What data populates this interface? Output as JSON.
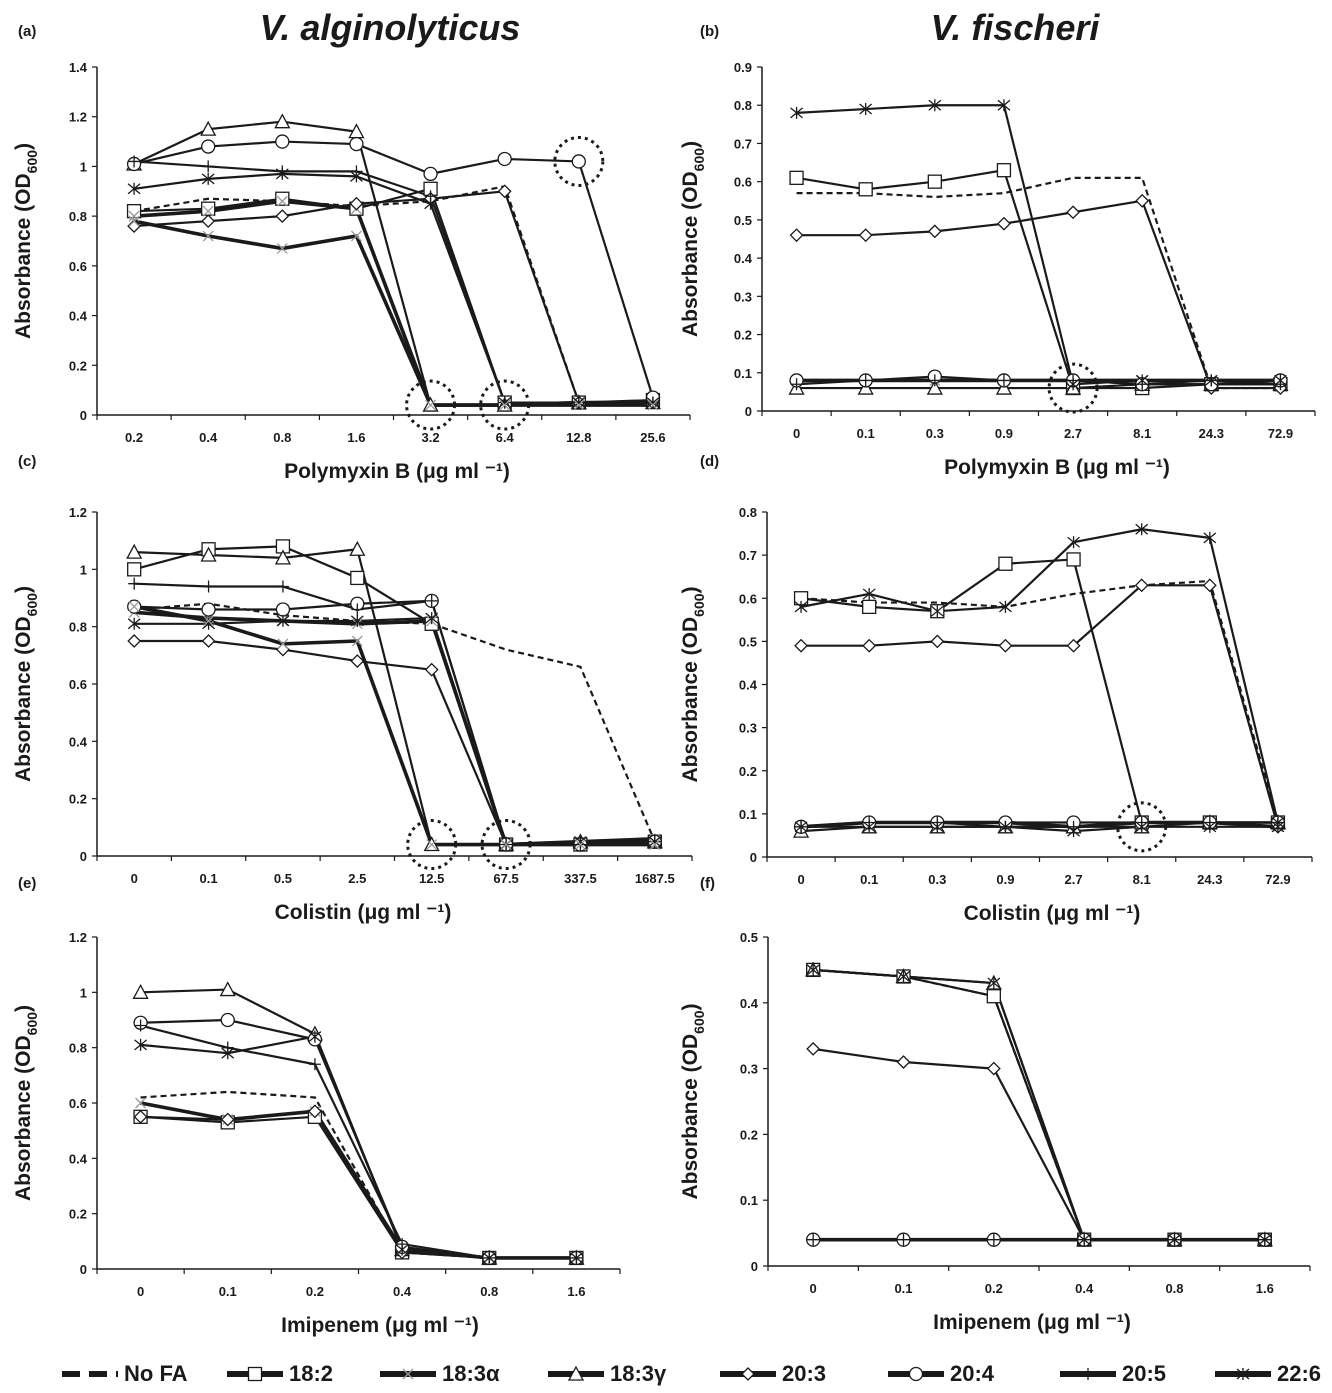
{
  "titles": {
    "left": "V. alginolyticus",
    "right": "V. fischeri"
  },
  "legend": [
    {
      "label": "No FA",
      "series": "nofa"
    },
    {
      "label": "18:2",
      "series": "s182"
    },
    {
      "label": "18:3α",
      "series": "s183a"
    },
    {
      "label": "18:3γ",
      "series": "s183g"
    },
    {
      "label": "20:3",
      "series": "s203"
    },
    {
      "label": "20:4",
      "series": "s204"
    },
    {
      "label": "20:5",
      "series": "s205"
    },
    {
      "label": "22:6",
      "series": "s226"
    }
  ],
  "styles": {
    "nofa": {
      "marker": "none",
      "dash": true,
      "width": 2.2,
      "color": "#1a1a1a"
    },
    "s182": {
      "marker": "square",
      "dash": false,
      "width": 2.2,
      "color": "#1a1a1a"
    },
    "s183a": {
      "marker": "x",
      "dash": false,
      "width": 3.6,
      "color": "#1a1a1a",
      "marker_color": "#999999"
    },
    "s183g": {
      "marker": "triangle",
      "dash": false,
      "width": 2.2,
      "color": "#1a1a1a"
    },
    "s203": {
      "marker": "diamond",
      "dash": false,
      "width": 2.2,
      "color": "#1a1a1a"
    },
    "s204": {
      "marker": "circle",
      "dash": false,
      "width": 2.2,
      "color": "#1a1a1a"
    },
    "s205": {
      "marker": "plus",
      "dash": false,
      "width": 2.2,
      "color": "#1a1a1a"
    },
    "s226": {
      "marker": "asterisk",
      "dash": false,
      "width": 2.2,
      "color": "#1a1a1a"
    }
  },
  "chart_data": [
    {
      "panel": "(a)",
      "type": "line",
      "xlabel": "Polymyxin B (μg ml ⁻¹)",
      "ylabel": "Absorbance (OD600)",
      "categories": [
        "0.2",
        "0.4",
        "0.8",
        "1.6",
        "3.2",
        "6.4",
        "12.8",
        "25.6"
      ],
      "ylim": [
        0,
        1.4
      ],
      "yticks": [
        0,
        0.2,
        0.4,
        0.6,
        0.8,
        1,
        1.2,
        1.4
      ],
      "highlight": [
        "3.2",
        "6.4",
        "12.8"
      ],
      "series": [
        {
          "id": "nofa",
          "values": [
            0.82,
            0.87,
            0.86,
            0.84,
            0.86,
            0.92,
            0.05,
            0.05
          ]
        },
        {
          "id": "s182",
          "values": [
            0.82,
            0.83,
            0.87,
            0.83,
            0.91,
            0.05,
            0.05,
            0.06
          ]
        },
        {
          "id": "s183a",
          "values": [
            0.8,
            0.82,
            0.86,
            0.83,
            0.04,
            0.04,
            0.05,
            0.05
          ]
        },
        {
          "id": "s183g",
          "values": [
            1.01,
            1.15,
            1.18,
            1.14,
            0.04,
            0.04,
            0.05,
            0.05
          ]
        },
        {
          "id": "s203",
          "values": [
            0.76,
            0.78,
            0.8,
            0.85,
            0.87,
            0.9,
            0.05,
            0.05
          ]
        },
        {
          "id": "s204",
          "values": [
            1.01,
            1.08,
            1.1,
            1.09,
            0.97,
            1.03,
            1.02,
            0.07
          ]
        },
        {
          "id": "s205",
          "values": [
            1.02,
            1.0,
            0.98,
            0.98,
            0.88,
            0.05,
            0.05,
            0.05
          ]
        },
        {
          "id": "s226",
          "values": [
            0.91,
            0.95,
            0.97,
            0.96,
            0.85,
            0.05,
            0.05,
            0.05
          ]
        },
        {
          "id": "s183a",
          "values": [
            0.78,
            0.72,
            0.67,
            0.72,
            0.04,
            0.04,
            0.04,
            0.04
          ]
        }
      ]
    },
    {
      "panel": "(b)",
      "type": "line",
      "xlabel": "Polymyxin B (μg ml ⁻¹)",
      "ylabel": "Absorbance (OD600)",
      "categories": [
        "0",
        "0.1",
        "0.3",
        "0.9",
        "2.7",
        "8.1",
        "24.3",
        "72.9"
      ],
      "ylim": [
        0,
        0.9
      ],
      "yticks": [
        0,
        0.1,
        0.2,
        0.3,
        0.4,
        0.5,
        0.6,
        0.7,
        0.8,
        0.9
      ],
      "highlight": [
        "2.7"
      ],
      "series": [
        {
          "id": "nofa",
          "values": [
            0.57,
            0.57,
            0.56,
            0.57,
            0.61,
            0.61,
            0.06,
            0.06
          ]
        },
        {
          "id": "s182",
          "values": [
            0.61,
            0.58,
            0.6,
            0.63,
            0.06,
            0.06,
            0.07,
            0.07
          ]
        },
        {
          "id": "s183a",
          "values": [
            0.08,
            0.08,
            0.08,
            0.08,
            0.08,
            0.08,
            0.08,
            0.08
          ]
        },
        {
          "id": "s183g",
          "values": [
            0.06,
            0.06,
            0.06,
            0.06,
            0.06,
            0.07,
            0.07,
            0.07
          ]
        },
        {
          "id": "s203",
          "values": [
            0.46,
            0.46,
            0.47,
            0.49,
            0.52,
            0.55,
            0.06,
            0.06
          ]
        },
        {
          "id": "s204",
          "values": [
            0.08,
            0.08,
            0.09,
            0.08,
            0.08,
            0.07,
            0.07,
            0.08
          ]
        },
        {
          "id": "s205",
          "values": [
            0.07,
            0.08,
            0.08,
            0.08,
            0.08,
            0.07,
            0.08,
            0.07
          ]
        },
        {
          "id": "s226",
          "values": [
            0.78,
            0.79,
            0.8,
            0.8,
            0.07,
            0.08,
            0.08,
            0.08
          ]
        }
      ]
    },
    {
      "panel": "(c)",
      "type": "line",
      "xlabel": "Colistin (μg ml ⁻¹)",
      "ylabel": "Absorbance (OD600)",
      "categories": [
        "0",
        "0.1",
        "0.5",
        "2.5",
        "12.5",
        "67.5",
        "337.5",
        "1687.5"
      ],
      "ylim": [
        0,
        1.2
      ],
      "yticks": [
        0,
        0.2,
        0.4,
        0.6,
        0.8,
        1,
        1.2
      ],
      "highlight": [
        "12.5",
        "67.5"
      ],
      "series": [
        {
          "id": "nofa",
          "values": [
            0.86,
            0.88,
            0.84,
            0.82,
            0.81,
            0.72,
            0.66,
            0.05
          ]
        },
        {
          "id": "s182",
          "values": [
            1.0,
            1.07,
            1.08,
            0.97,
            0.81,
            0.04,
            0.04,
            0.05
          ]
        },
        {
          "id": "s183a",
          "values": [
            0.85,
            0.83,
            0.82,
            0.81,
            0.82,
            0.04,
            0.05,
            0.06
          ]
        },
        {
          "id": "s183g",
          "values": [
            1.06,
            1.05,
            1.04,
            1.07,
            0.04,
            0.04,
            0.05,
            0.05
          ]
        },
        {
          "id": "s203",
          "values": [
            0.75,
            0.75,
            0.72,
            0.68,
            0.65,
            0.04,
            0.04,
            0.05
          ]
        },
        {
          "id": "s204",
          "values": [
            0.87,
            0.86,
            0.86,
            0.88,
            0.89,
            0.04,
            0.04,
            0.05
          ]
        },
        {
          "id": "s205",
          "values": [
            0.95,
            0.94,
            0.94,
            0.86,
            0.89,
            0.04,
            0.04,
            0.05
          ]
        },
        {
          "id": "s226",
          "values": [
            0.81,
            0.81,
            0.82,
            0.82,
            0.83,
            0.04,
            0.05,
            0.05
          ]
        },
        {
          "id": "s183a",
          "values": [
            0.87,
            0.82,
            0.74,
            0.75,
            0.04,
            0.04,
            0.04,
            0.04
          ]
        }
      ]
    },
    {
      "panel": "(d)",
      "type": "line",
      "xlabel": "Colistin (μg ml ⁻¹)",
      "ylabel": "Absorbance (OD600)",
      "categories": [
        "0",
        "0.1",
        "0.3",
        "0.9",
        "2.7",
        "8.1",
        "24.3",
        "72.9"
      ],
      "ylim": [
        0,
        0.8
      ],
      "yticks": [
        0,
        0.1,
        0.2,
        0.3,
        0.4,
        0.5,
        0.6,
        0.7,
        0.8
      ],
      "highlight": [
        "8.1"
      ],
      "series": [
        {
          "id": "nofa",
          "values": [
            0.6,
            0.59,
            0.59,
            0.58,
            0.61,
            0.63,
            0.64,
            0.08
          ]
        },
        {
          "id": "s182",
          "values": [
            0.6,
            0.58,
            0.57,
            0.68,
            0.69,
            0.08,
            0.08,
            0.08
          ]
        },
        {
          "id": "s183a",
          "values": [
            0.07,
            0.08,
            0.08,
            0.08,
            0.07,
            0.08,
            0.08,
            0.07
          ]
        },
        {
          "id": "s183g",
          "values": [
            0.06,
            0.07,
            0.07,
            0.07,
            0.07,
            0.07,
            0.08,
            0.08
          ]
        },
        {
          "id": "s203",
          "values": [
            0.49,
            0.49,
            0.5,
            0.49,
            0.49,
            0.63,
            0.63,
            0.07
          ]
        },
        {
          "id": "s204",
          "values": [
            0.07,
            0.08,
            0.08,
            0.08,
            0.08,
            0.08,
            0.08,
            0.08
          ]
        },
        {
          "id": "s205",
          "values": [
            0.07,
            0.08,
            0.08,
            0.07,
            0.07,
            0.08,
            0.08,
            0.08
          ]
        },
        {
          "id": "s226",
          "values": [
            0.58,
            0.61,
            0.57,
            0.58,
            0.73,
            0.76,
            0.74,
            0.08
          ]
        },
        {
          "id": "s226",
          "values": [
            0.07,
            0.07,
            0.07,
            0.07,
            0.06,
            0.07,
            0.07,
            0.07
          ]
        }
      ]
    },
    {
      "panel": "(e)",
      "type": "line",
      "xlabel": "Imipenem (μg ml ⁻¹)",
      "ylabel": "Absorbance (OD600)",
      "categories": [
        "0",
        "0.1",
        "0.2",
        "0.4",
        "0.8",
        "1.6"
      ],
      "ylim": [
        0,
        1.2
      ],
      "yticks": [
        0,
        0.2,
        0.4,
        0.6,
        0.8,
        1,
        1.2
      ],
      "series": [
        {
          "id": "nofa",
          "values": [
            0.62,
            0.64,
            0.62,
            0.06,
            0.04,
            0.04
          ]
        },
        {
          "id": "s182",
          "values": [
            0.55,
            0.53,
            0.55,
            0.06,
            0.04,
            0.04
          ]
        },
        {
          "id": "s183a",
          "values": [
            0.6,
            0.54,
            0.57,
            0.07,
            0.04,
            0.04
          ]
        },
        {
          "id": "s183g",
          "values": [
            1.0,
            1.01,
            0.85,
            0.07,
            0.04,
            0.04
          ]
        },
        {
          "id": "s203",
          "values": [
            0.55,
            0.54,
            0.57,
            0.06,
            0.04,
            0.04
          ]
        },
        {
          "id": "s204",
          "values": [
            0.89,
            0.9,
            0.83,
            0.08,
            0.04,
            0.04
          ]
        },
        {
          "id": "s205",
          "values": [
            0.88,
            0.8,
            0.74,
            0.09,
            0.04,
            0.04
          ]
        },
        {
          "id": "s226",
          "values": [
            0.81,
            0.78,
            0.84,
            0.07,
            0.04,
            0.04
          ]
        }
      ]
    },
    {
      "panel": "(f)",
      "type": "line",
      "xlabel": "Imipenem (μg ml ⁻¹)",
      "ylabel": "Absorbance (OD600)",
      "categories": [
        "0",
        "0.1",
        "0.2",
        "0.4",
        "0.8",
        "1.6"
      ],
      "ylim": [
        0,
        0.5
      ],
      "yticks": [
        0,
        0.1,
        0.2,
        0.3,
        0.4,
        0.5
      ],
      "series": [
        {
          "id": "nofa",
          "values": [
            0.45,
            0.44,
            0.41,
            0.04,
            0.04,
            0.04
          ]
        },
        {
          "id": "s182",
          "values": [
            0.45,
            0.44,
            0.41,
            0.04,
            0.04,
            0.04
          ]
        },
        {
          "id": "s183a",
          "values": [
            0.04,
            0.04,
            0.04,
            0.04,
            0.04,
            0.04
          ]
        },
        {
          "id": "s183g",
          "values": [
            0.45,
            0.44,
            0.43,
            0.04,
            0.04,
            0.04
          ]
        },
        {
          "id": "s203",
          "values": [
            0.33,
            0.31,
            0.3,
            0.04,
            0.04,
            0.04
          ]
        },
        {
          "id": "s204",
          "values": [
            0.04,
            0.04,
            0.04,
            0.04,
            0.04,
            0.04
          ]
        },
        {
          "id": "s205",
          "values": [
            0.04,
            0.04,
            0.04,
            0.04,
            0.04,
            0.04
          ]
        },
        {
          "id": "s226",
          "values": [
            0.45,
            0.44,
            0.43,
            0.04,
            0.04,
            0.04
          ]
        }
      ]
    }
  ]
}
